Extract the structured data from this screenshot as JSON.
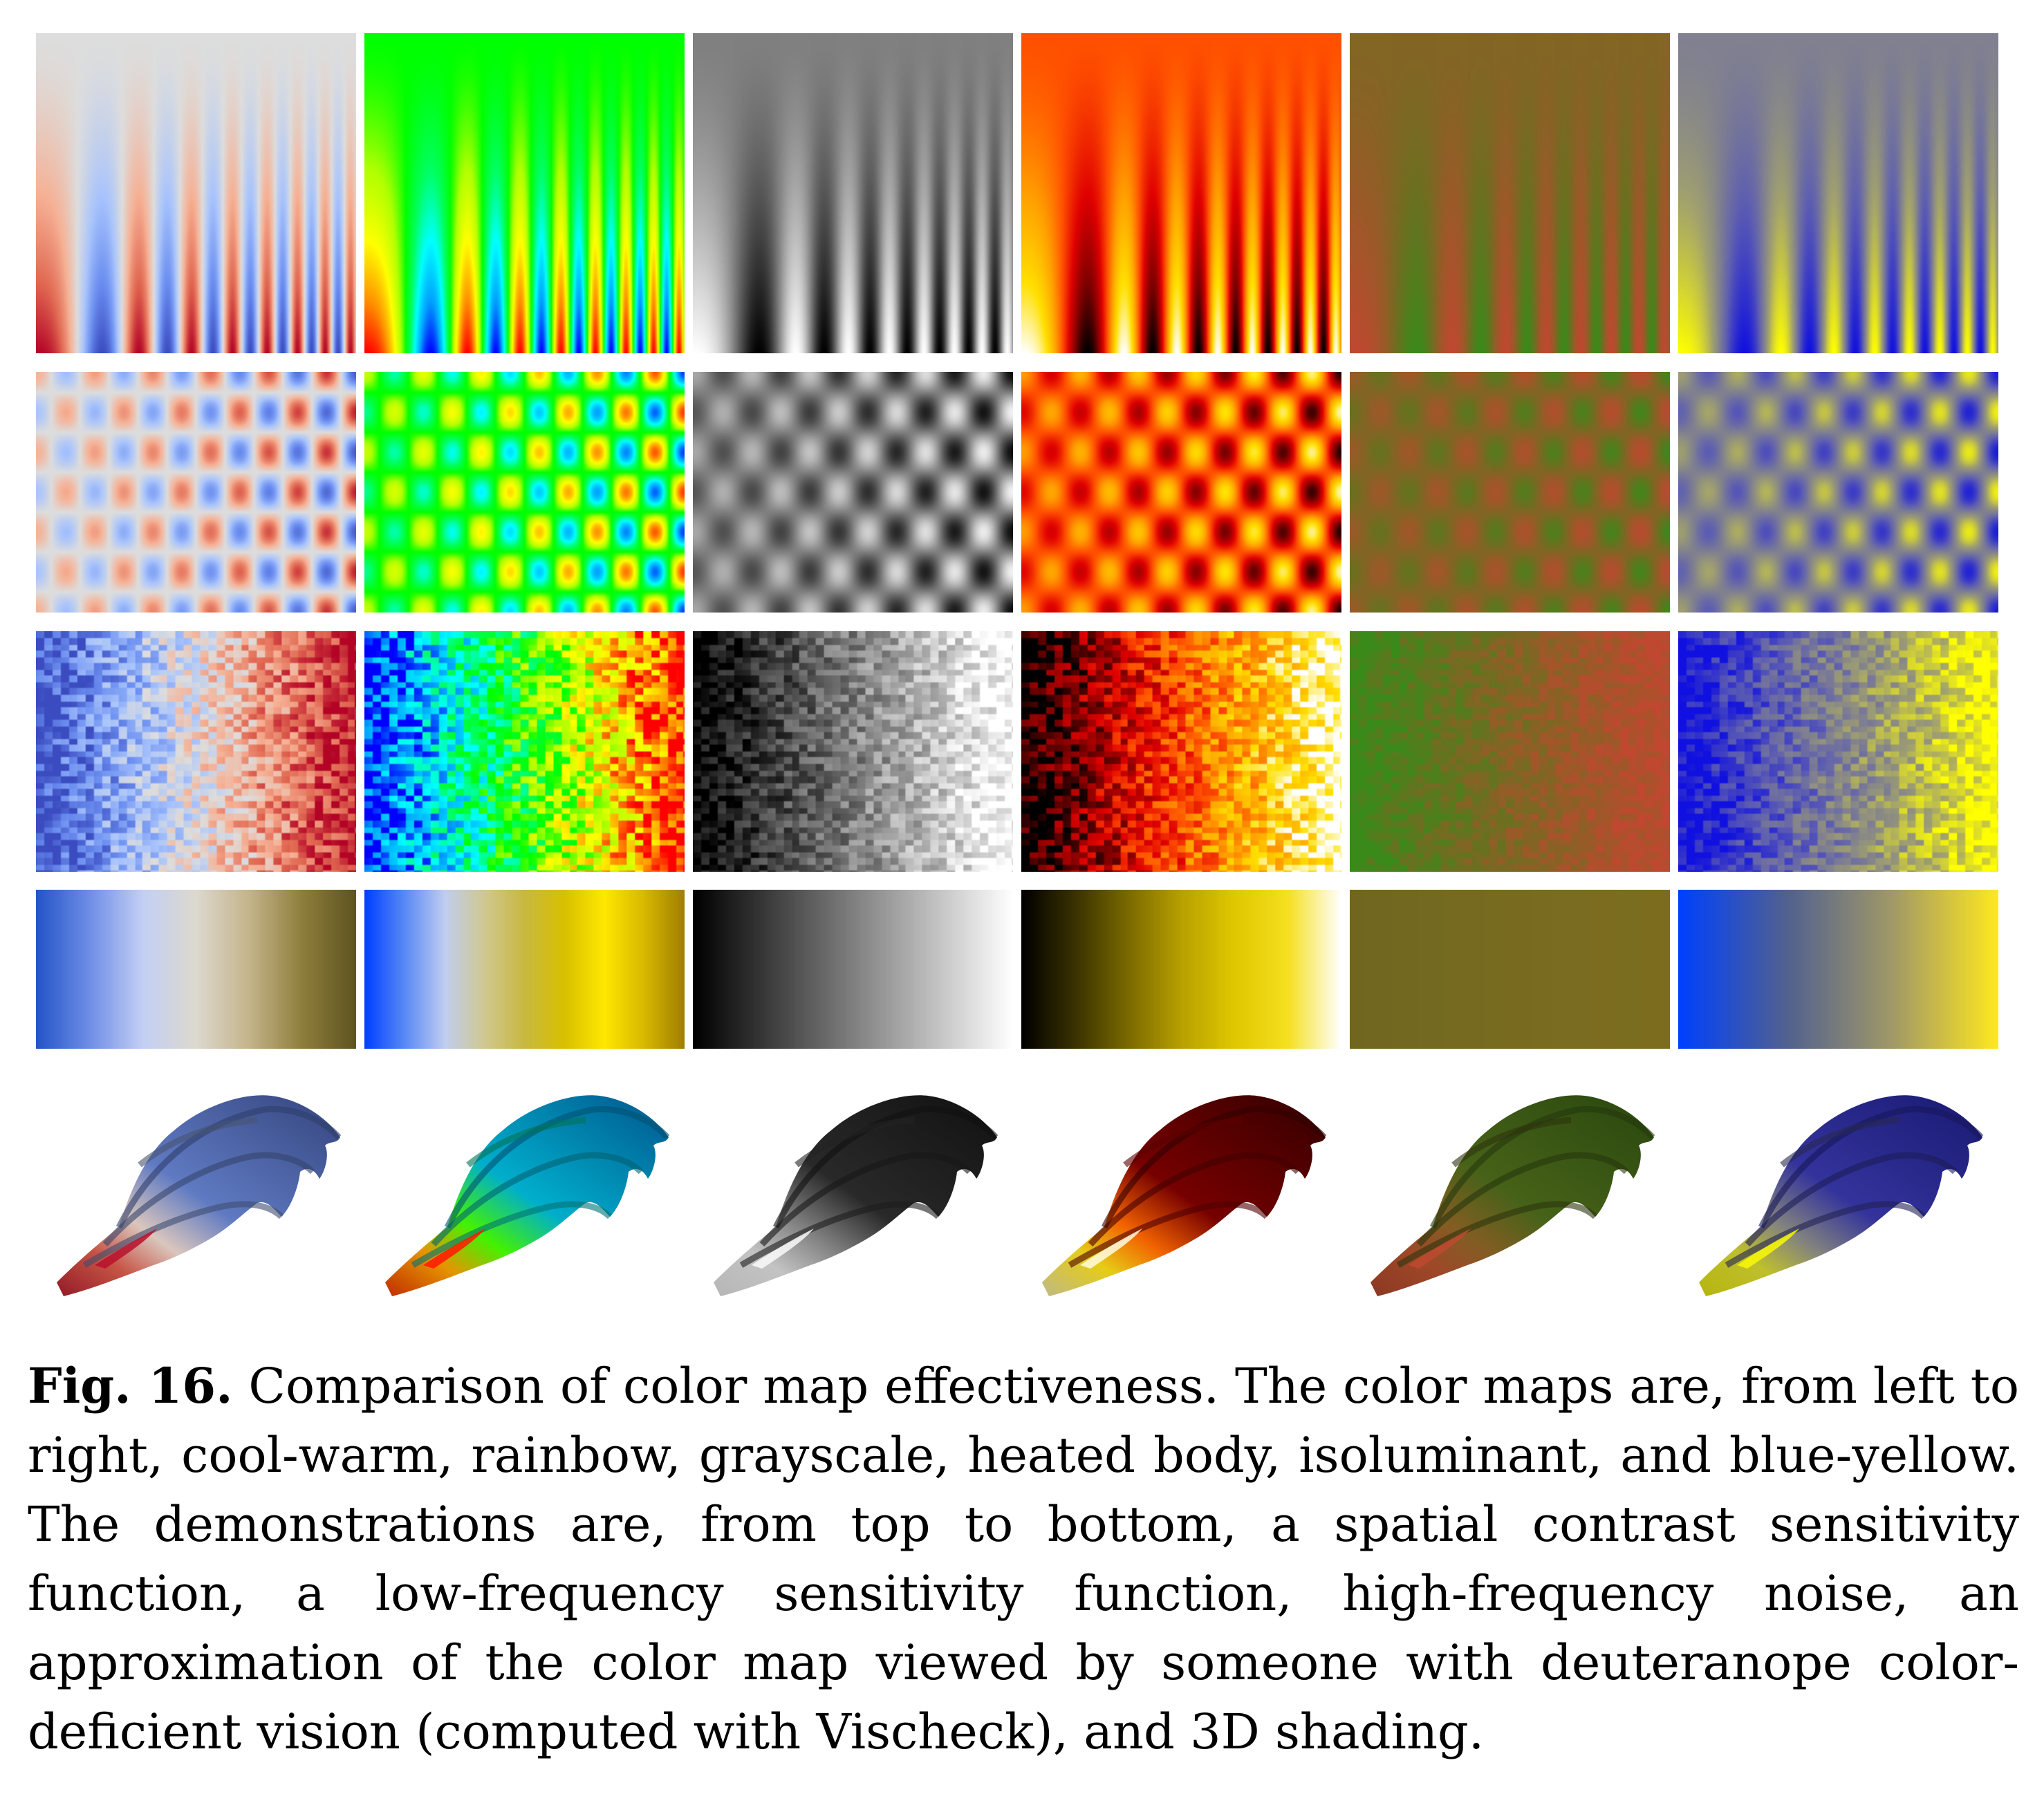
{
  "figure": {
    "colormaps": [
      {
        "key": "cool-warm",
        "stops": [
          "#3b4cc0",
          "#6b8ef0",
          "#a9c4fc",
          "#dddddd",
          "#f6b195",
          "#e16852",
          "#b40426"
        ],
        "deut_stops": [
          "#2455c8",
          "#6f8ee6",
          "#c3cff5",
          "#ddd9cf",
          "#c4b48a",
          "#8e7e3c",
          "#5f5420"
        ],
        "colors": [
          "#3b4cc0",
          "#dddddd",
          "#b40426"
        ]
      },
      {
        "key": "rainbow",
        "stops": [
          "#0000ff",
          "#00a0ff",
          "#00ffff",
          "#00ff60",
          "#00ff00",
          "#b0ff00",
          "#ffff00",
          "#ff9000",
          "#ff0000"
        ],
        "deut_stops": [
          "#0040ff",
          "#5a8af5",
          "#c0cdf0",
          "#d0c890",
          "#c8b840",
          "#d8c000",
          "#ffe800",
          "#d8b800",
          "#a08000"
        ],
        "colors": [
          "#0000ff",
          "#00ff00",
          "#ff0000"
        ]
      },
      {
        "key": "grayscale",
        "stops": [
          "#000000",
          "#ffffff"
        ],
        "deut_stops": [
          "#000000",
          "#ffffff"
        ],
        "colors": [
          "#000000",
          "#ffffff"
        ]
      },
      {
        "key": "heated body",
        "stops": [
          "#000000",
          "#800000",
          "#e00000",
          "#ff5000",
          "#ffa000",
          "#ffe000",
          "#ffffff"
        ],
        "deut_stops": [
          "#000000",
          "#3a3200",
          "#7a6a00",
          "#b8a000",
          "#e0c800",
          "#f5e020",
          "#ffffff"
        ],
        "colors": [
          "#000000",
          "#ff3000",
          "#ffffff"
        ]
      },
      {
        "key": "isoluminant",
        "stops": [
          "#3a8a1a",
          "#6b7020",
          "#9a5a28",
          "#c04830"
        ],
        "deut_stops": [
          "#716620",
          "#756a20",
          "#7a6c20",
          "#7c6d1e"
        ],
        "colors": [
          "#3a8a1a",
          "#c04830"
        ]
      },
      {
        "key": "blue-yellow",
        "stops": [
          "#1010e0",
          "#6060b0",
          "#a0a070",
          "#ffff00"
        ],
        "deut_stops": [
          "#0040ff",
          "#506090",
          "#a09868",
          "#ffe820"
        ],
        "colors": [
          "#1010e0",
          "#ffff00"
        ]
      }
    ],
    "rows": [
      "spatial contrast sensitivity function",
      "low-frequency sensitivity function",
      "high-frequency noise",
      "deuteranope approximation (Vischeck)",
      "3D shading"
    ]
  },
  "caption": {
    "label": "Fig. 16.",
    "text": " Comparison of color map effectiveness. The color maps are, from left to right, cool-warm, rainbow, grayscale, heated body, isoluminant, and blue-yellow. The demonstrations are, from top to bottom, a spatial contrast sensitivity function, a low-frequency sensitivity function, high-frequency noise, an approximation of the color map viewed by someone with deuteranope color-deficient vision (computed with Vischeck), and 3D shading."
  }
}
